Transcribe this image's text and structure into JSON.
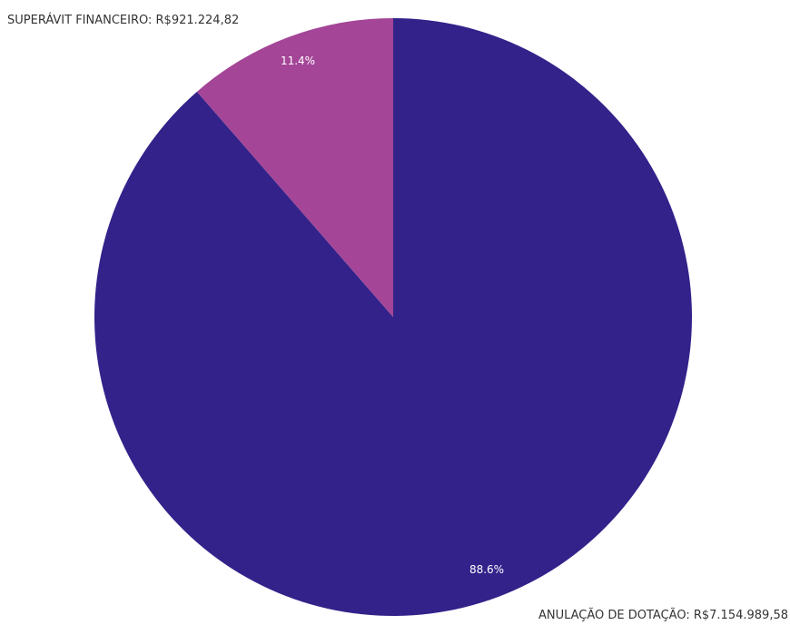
{
  "chart_data": {
    "type": "pie",
    "title": "",
    "start_angle_deg": 0,
    "direction": "counterclockwise",
    "slices": [
      {
        "name": "ANULAÇÃO DE DOTAÇÃO",
        "amount": "R$7.154.989,58",
        "value": 7154989.58,
        "percent_label": "88.6%",
        "color": "#32228a"
      },
      {
        "name": "SUPERÁVIT FINANCEIRO",
        "amount": "R$921.224,82",
        "value": 921224.82,
        "percent_label": "11.4%",
        "color": "#a44597"
      }
    ],
    "outer_label_color": "#333333",
    "inner_label_color": "#ffffff"
  }
}
